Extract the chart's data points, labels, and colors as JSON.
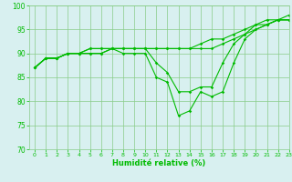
{
  "xlabel": "Humidité relative (%)",
  "bg_color": "#d8f0f0",
  "grid_color": "#88cc88",
  "line_color": "#00bb00",
  "ylim": [
    70,
    100
  ],
  "xlim": [
    -0.5,
    23
  ],
  "yticks": [
    70,
    75,
    80,
    85,
    90,
    95,
    100
  ],
  "xticks": [
    0,
    1,
    2,
    3,
    4,
    5,
    6,
    7,
    8,
    9,
    10,
    11,
    12,
    13,
    14,
    15,
    16,
    17,
    18,
    19,
    20,
    21,
    22,
    23
  ],
  "series": [
    [
      87,
      89,
      89,
      90,
      90,
      90,
      90,
      91,
      90,
      90,
      90,
      85,
      84,
      77,
      78,
      82,
      81,
      82,
      88,
      93,
      95,
      96,
      97,
      97
    ],
    [
      87,
      89,
      89,
      90,
      90,
      90,
      90,
      91,
      91,
      91,
      91,
      88,
      86,
      82,
      82,
      83,
      83,
      88,
      92,
      94,
      96,
      96,
      97,
      98
    ],
    [
      87,
      89,
      89,
      90,
      90,
      91,
      91,
      91,
      91,
      91,
      91,
      91,
      91,
      91,
      91,
      91,
      91,
      92,
      93,
      94,
      95,
      96,
      97,
      97
    ],
    [
      87,
      89,
      89,
      90,
      90,
      91,
      91,
      91,
      91,
      91,
      91,
      91,
      91,
      91,
      91,
      92,
      93,
      93,
      94,
      95,
      96,
      97,
      97,
      97
    ]
  ]
}
